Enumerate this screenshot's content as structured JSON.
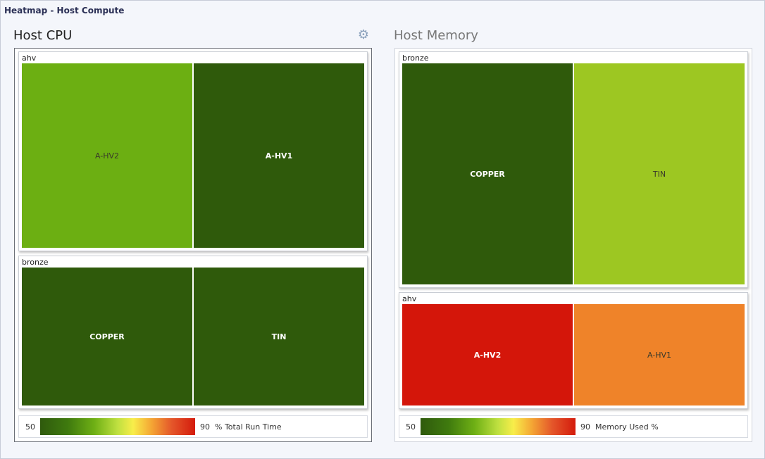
{
  "window": {
    "title": "Heatmap - Host Compute"
  },
  "cpu_panel": {
    "title": "Host CPU",
    "settings_icon": "gear-icon",
    "groups": [
      {
        "label": "ahv",
        "hosts": [
          {
            "name": "A-HV2",
            "color": "#6caf12"
          },
          {
            "name": "A-HV1",
            "color": "#2f5a0b"
          }
        ]
      },
      {
        "label": "bronze",
        "hosts": [
          {
            "name": "COPPER",
            "color": "#2f5a0b"
          },
          {
            "name": "TIN",
            "color": "#2f5a0b"
          }
        ]
      }
    ],
    "legend": {
      "min": "50",
      "max": "90",
      "label": "% Total Run Time"
    }
  },
  "memory_panel": {
    "title": "Host Memory",
    "groups": [
      {
        "label": "bronze",
        "hosts": [
          {
            "name": "COPPER",
            "color": "#2f5a0b"
          },
          {
            "name": "TIN",
            "color": "#9dc722"
          }
        ]
      },
      {
        "label": "ahv",
        "hosts": [
          {
            "name": "A-HV2",
            "color": "#d4160a"
          },
          {
            "name": "A-HV1",
            "color": "#ef8329"
          }
        ]
      }
    ],
    "legend": {
      "min": "50",
      "max": "90",
      "label": "Memory Used %"
    }
  }
}
